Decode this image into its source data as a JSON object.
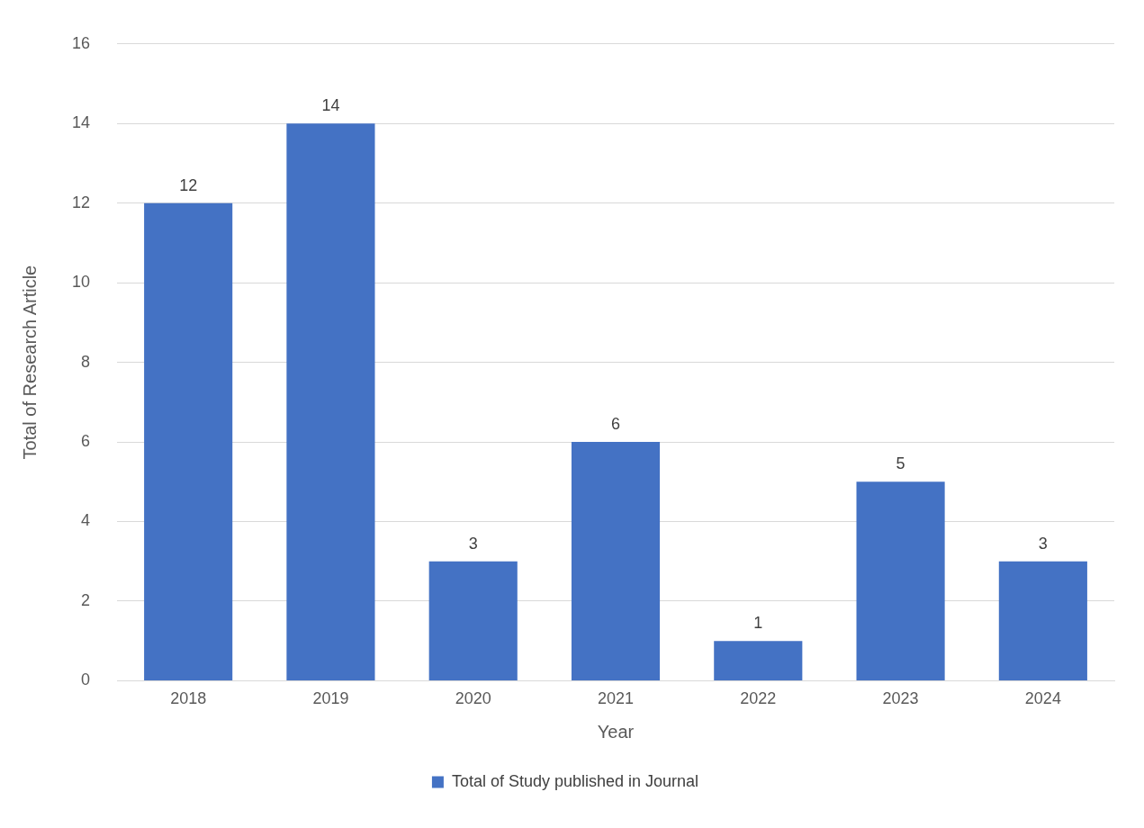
{
  "chart_data": {
    "type": "bar",
    "xlabel": "Year",
    "ylabel": "Total of Research Article",
    "categories": [
      "2018",
      "2019",
      "2020",
      "2021",
      "2022",
      "2023",
      "2024"
    ],
    "series": [
      {
        "name": "Total of Study published in Journal",
        "color": "#4472c4",
        "values": [
          12,
          14,
          3,
          6,
          1,
          5,
          3
        ]
      }
    ],
    "ylim": [
      0,
      16
    ],
    "yticks": [
      0,
      2,
      4,
      6,
      8,
      10,
      12,
      14,
      16
    ],
    "grid": "y",
    "legend": "bottom",
    "data_labels": true
  }
}
